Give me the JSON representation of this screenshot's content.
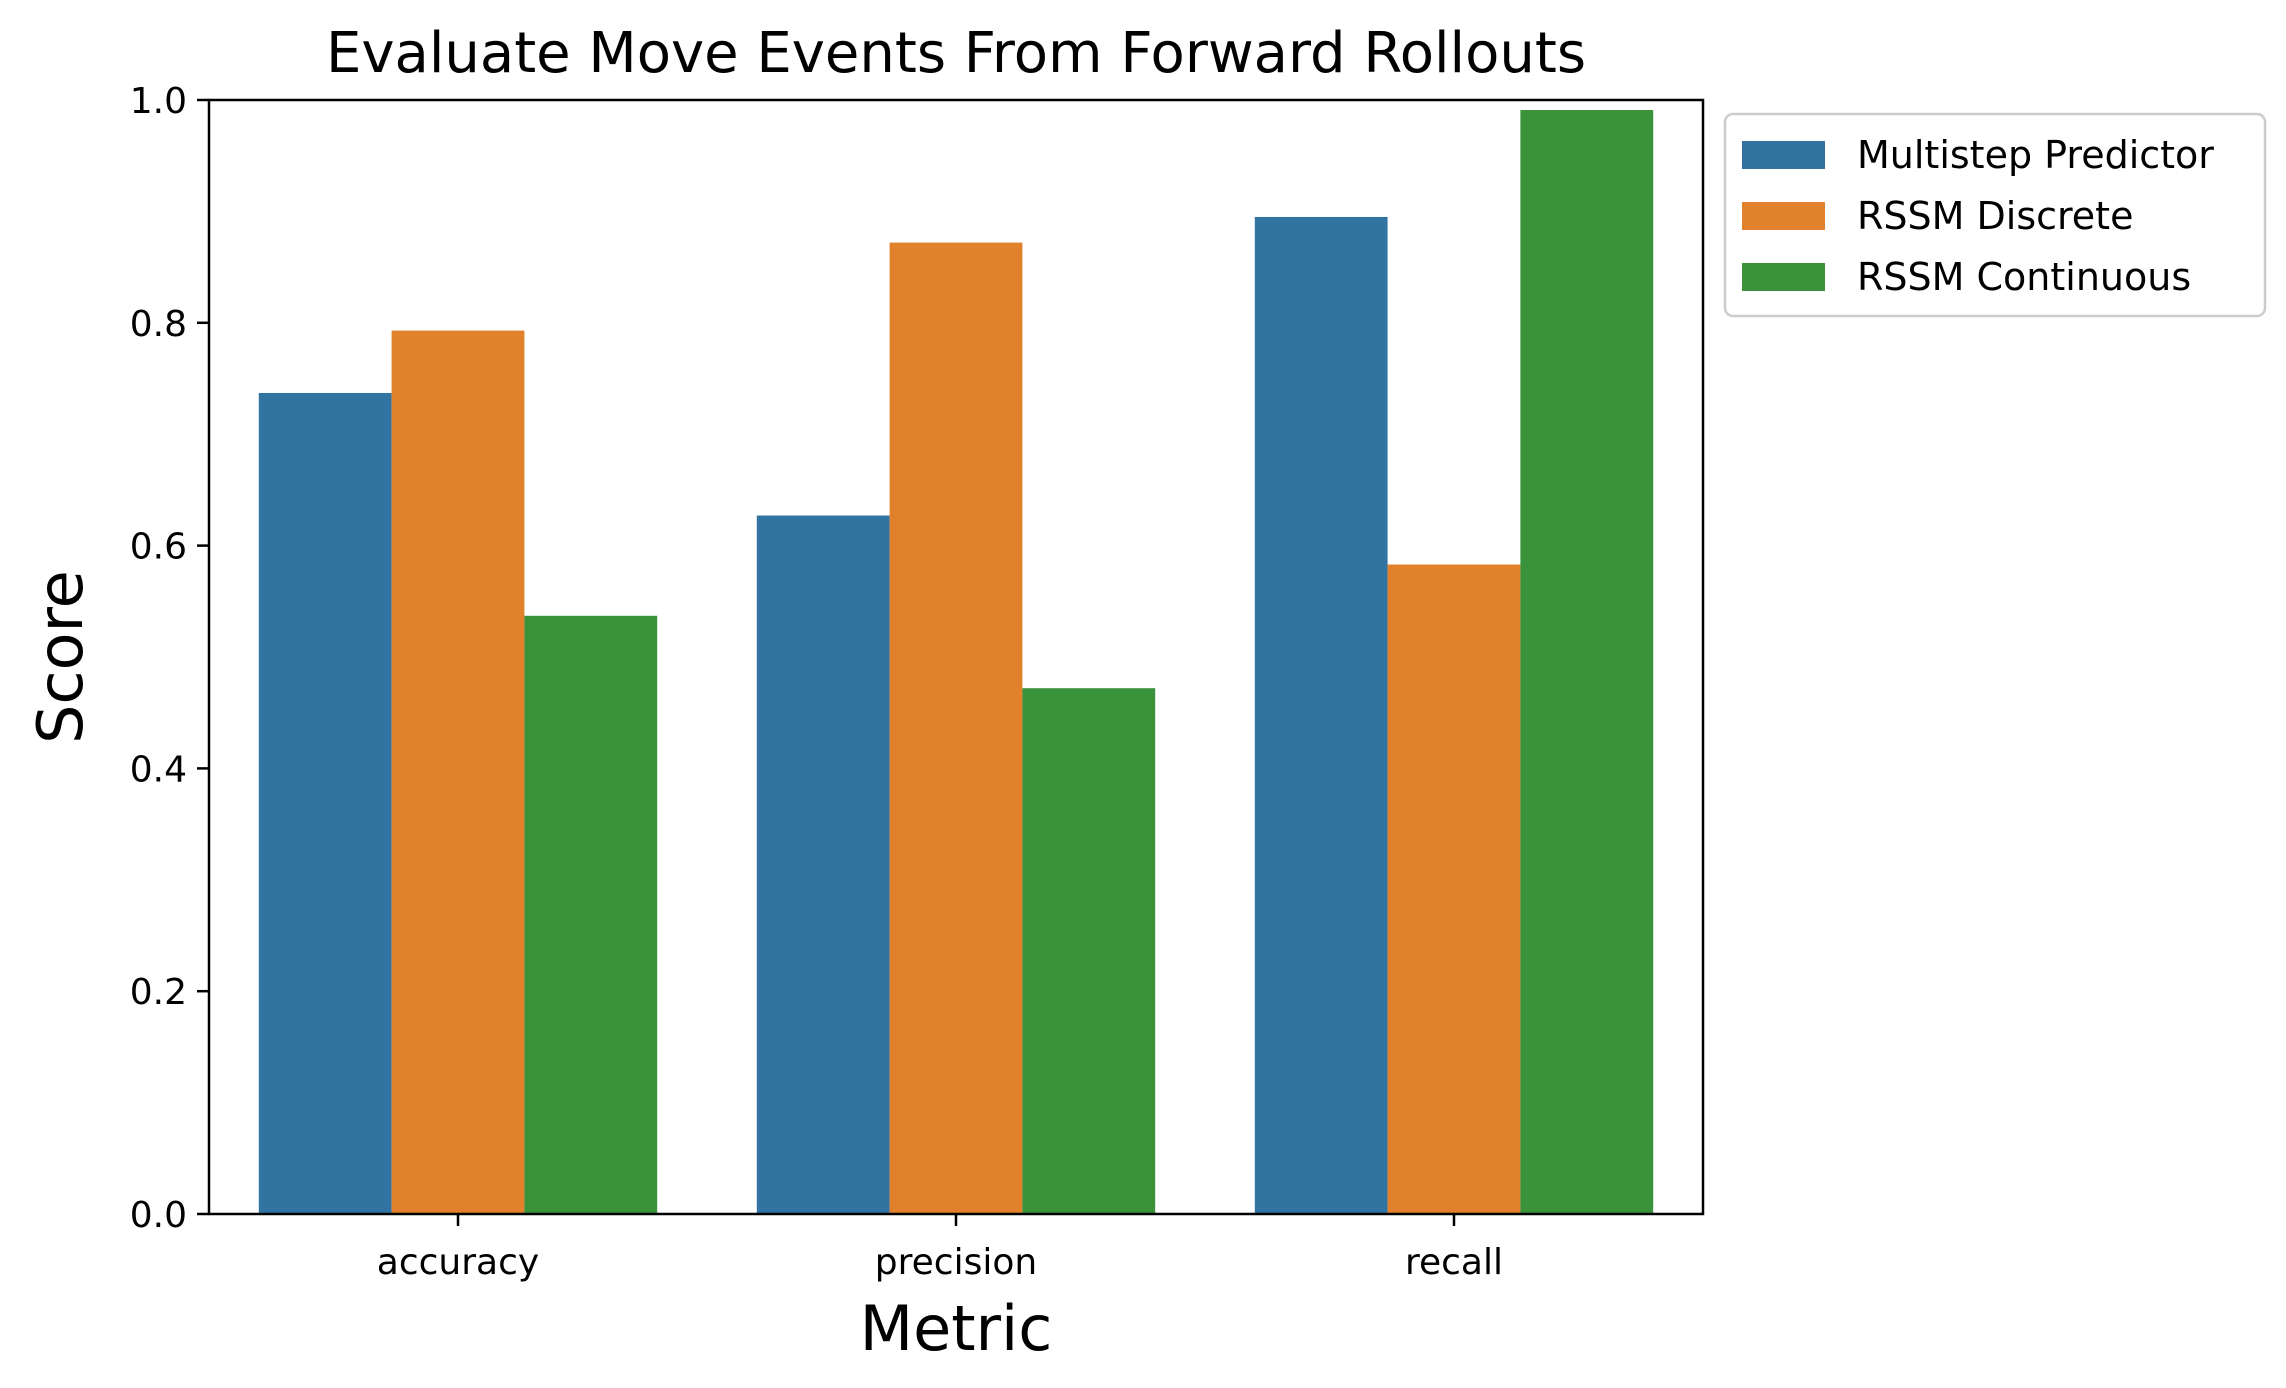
{
  "chart_data": {
    "type": "bar",
    "title": "Evaluate Move Events From Forward Rollouts",
    "xlabel": "Metric",
    "ylabel": "Score",
    "categories": [
      "accuracy",
      "precision",
      "recall"
    ],
    "ylim": [
      0,
      1.0
    ],
    "yticks": [
      "0.0",
      "0.2",
      "0.4",
      "0.6",
      "0.8",
      "1.0"
    ],
    "grid": false,
    "legend_position": "outside-top-right",
    "series": [
      {
        "name": "Multistep Predictor",
        "color": "#3274a1",
        "values": [
          0.737,
          0.627,
          0.895
        ]
      },
      {
        "name": "RSSM Discrete",
        "color": "#e1812c",
        "values": [
          0.793,
          0.872,
          0.583
        ]
      },
      {
        "name": "RSSM Continuous",
        "color": "#3a923a",
        "values": [
          0.537,
          0.472,
          0.991
        ]
      }
    ]
  }
}
